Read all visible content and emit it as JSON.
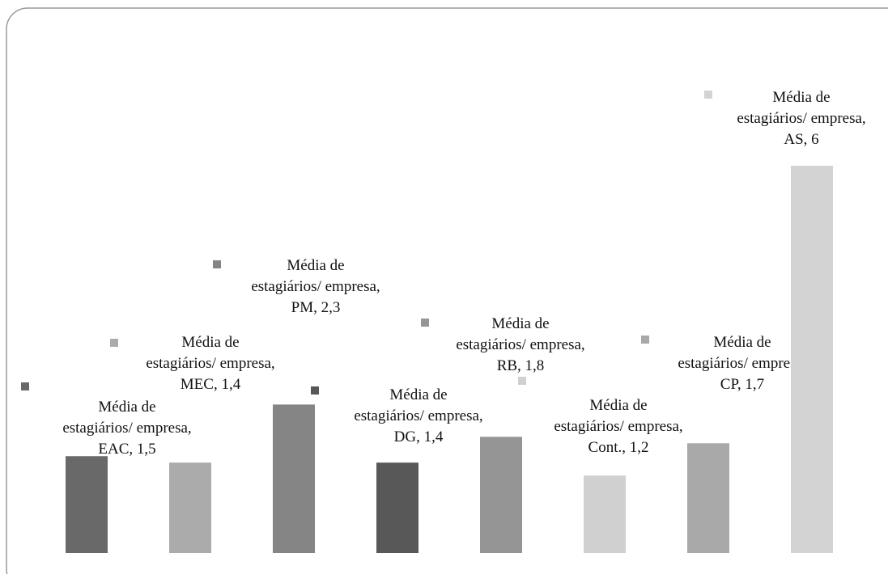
{
  "chart_data": {
    "type": "bar",
    "series_name": "Média de estagiários/ empresa",
    "categories": [
      "EAC",
      "MEC",
      "PM",
      "DG",
      "RB",
      "Cont.",
      "CP",
      "AS"
    ],
    "values": [
      1.5,
      1.4,
      2.3,
      1.4,
      1.8,
      1.2,
      1.7,
      6
    ],
    "value_labels": [
      "Média de estagiários/ empresa, EAC, 1,5",
      "Média de estagiários/ empresa, MEC, 1,4",
      "Média de estagiários/ empresa, PM, 2,3",
      "Média de estagiários/ empresa, DG, 1,4",
      "Média de estagiários/ empresa, RB, 1,8",
      "Média de estagiários/ empresa, Cont., 1,2",
      "Média de estagiários/ empresa, CP, 1,7",
      "Média de estagiários/ empresa, AS, 6"
    ],
    "colors": [
      "#696969",
      "#ababab",
      "#858585",
      "#585858",
      "#959595",
      "#d0d0d0",
      "#a9a9a9",
      "#d3d3d3"
    ]
  }
}
